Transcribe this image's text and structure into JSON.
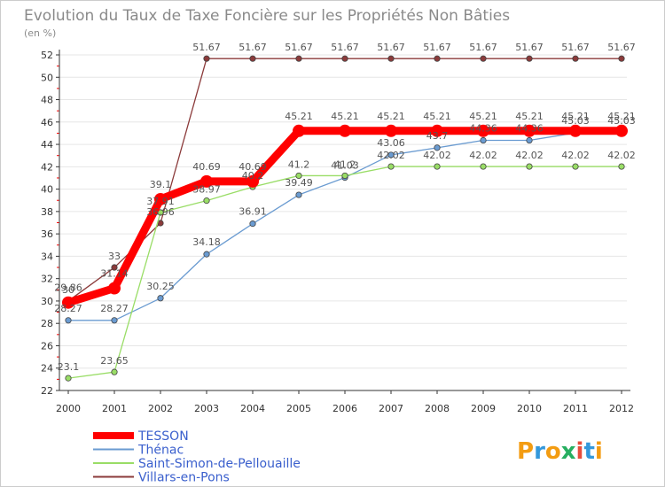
{
  "chart_data": {
    "type": "line",
    "title": "Evolution du Taux de Taxe Foncière sur les Propriétés Non Bâties",
    "unit_label": "(en %)",
    "x": [
      "2000",
      "2001",
      "2002",
      "2003",
      "2004",
      "2005",
      "2006",
      "2007",
      "2008",
      "2009",
      "2010",
      "2011",
      "2012"
    ],
    "ylim": [
      22,
      52
    ],
    "yticks": [
      22,
      24,
      26,
      28,
      30,
      32,
      34,
      36,
      38,
      40,
      42,
      44,
      46,
      48,
      50,
      52
    ],
    "series": [
      {
        "name": "TESSON",
        "color": "#ff0000",
        "values": [
          29.86,
          31.14,
          39.1,
          40.69,
          40.69,
          45.21,
          45.21,
          45.21,
          45.21,
          45.21,
          45.21,
          45.21,
          45.21
        ],
        "labels": [
          "29.86",
          "31.14",
          "39.1",
          "40.69",
          "40.69",
          "45.21",
          "45.21",
          "45.21",
          "45.21",
          "45.21",
          "45.21",
          "45.21",
          "45.21"
        ]
      },
      {
        "name": "Thénac",
        "color": "#6a9bd1",
        "values": [
          28.27,
          28.27,
          30.25,
          34.18,
          36.91,
          39.49,
          41.03,
          43.06,
          43.7,
          44.36,
          44.36,
          45.03,
          45.03
        ],
        "labels": [
          "28.27",
          "28.27",
          "30.25",
          "34.18",
          "36.91",
          "39.49",
          "41.03",
          "43.06",
          "43.7",
          "44.36",
          "44.36",
          "45.03",
          "45.03"
        ]
      },
      {
        "name": "Saint-Simon-de-Pellouaille",
        "color": "#99dd66",
        "values": [
          23.1,
          23.65,
          37.91,
          38.97,
          40.2,
          41.2,
          41.2,
          42.02,
          42.02,
          42.02,
          42.02,
          42.02,
          42.02
        ],
        "labels": [
          "23.1",
          "23.65",
          "37.91",
          "38.97",
          "40.2",
          "41.2",
          "41.2",
          "42.02",
          "42.02",
          "42.02",
          "42.02",
          "42.02",
          "42.02"
        ]
      },
      {
        "name": "Villars-en-Pons",
        "color": "#8b3a3a",
        "values": [
          30.0,
          33.0,
          36.96,
          51.67,
          51.67,
          51.67,
          51.67,
          51.67,
          51.67,
          51.67,
          51.67,
          51.67,
          51.67
        ],
        "labels": [
          "30",
          "33",
          "36.96",
          "51.67",
          "51.67",
          "51.67",
          "51.67",
          "51.67",
          "51.67",
          "51.67",
          "51.67",
          "51.67",
          "51.67"
        ]
      }
    ]
  },
  "logo": {
    "text": "Proxiti",
    "letters": [
      "P",
      "r",
      "o",
      "x",
      "i",
      "t",
      "i"
    ],
    "colors": [
      "#f39c12",
      "#3498db",
      "#f39c12",
      "#27ae60",
      "#e74c3c",
      "#3498db",
      "#f39c12"
    ]
  }
}
